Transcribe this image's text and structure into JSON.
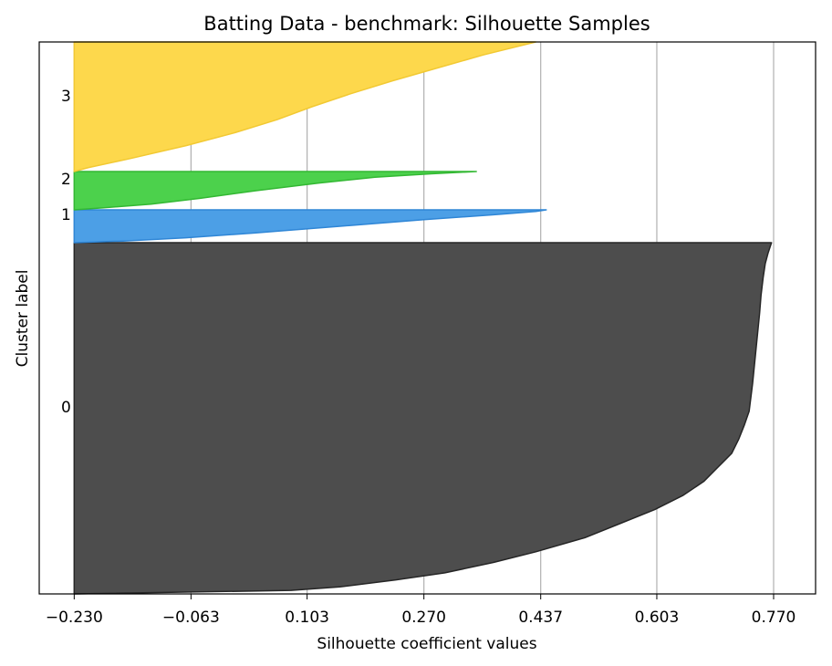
{
  "chart_data": {
    "type": "area",
    "title": "Batting Data - benchmark: Silhouette Samples",
    "xlabel": "Silhouette coefficient values",
    "ylabel": "Cluster label",
    "xlim": [
      -0.28,
      0.83
    ],
    "x_ticks": [
      "−0.230",
      "−0.063",
      "0.103",
      "0.270",
      "0.437",
      "0.603",
      "0.770"
    ],
    "x_tick_values": [
      -0.23,
      -0.063,
      0.103,
      0.27,
      0.437,
      0.603,
      0.77
    ],
    "grid": "vertical",
    "baseline": -0.23,
    "clusters": [
      {
        "label": "0",
        "color": "#4d4d4d",
        "edge": "#262626",
        "sample_count": 385,
        "max_value": 0.767,
        "min_value": -0.23,
        "profile": [
          [
            0,
            0.767
          ],
          [
            0.03,
            0.762
          ],
          [
            0.06,
            0.758
          ],
          [
            0.1,
            0.755
          ],
          [
            0.15,
            0.752
          ],
          [
            0.2,
            0.75
          ],
          [
            0.3,
            0.745
          ],
          [
            0.4,
            0.74
          ],
          [
            0.48,
            0.735
          ],
          [
            0.52,
            0.728
          ],
          [
            0.56,
            0.72
          ],
          [
            0.6,
            0.71
          ],
          [
            0.64,
            0.69
          ],
          [
            0.68,
            0.67
          ],
          [
            0.72,
            0.64
          ],
          [
            0.76,
            0.6
          ],
          [
            0.8,
            0.55
          ],
          [
            0.84,
            0.5
          ],
          [
            0.88,
            0.43
          ],
          [
            0.91,
            0.37
          ],
          [
            0.94,
            0.3
          ],
          [
            0.96,
            0.23
          ],
          [
            0.98,
            0.15
          ],
          [
            0.99,
            0.08
          ],
          [
            1.0,
            -0.23
          ]
        ]
      },
      {
        "label": "1",
        "color": "#4c9fe6",
        "edge": "#2f86d6",
        "sample_count": 22,
        "max_value": 0.445,
        "min_value": -0.23,
        "profile": [
          [
            0,
            0.445
          ],
          [
            0.05,
            0.43
          ],
          [
            0.15,
            0.37
          ],
          [
            0.3,
            0.27
          ],
          [
            0.5,
            0.15
          ],
          [
            0.7,
            0.03
          ],
          [
            0.85,
            -0.07
          ],
          [
            0.95,
            -0.16
          ],
          [
            1.0,
            -0.23
          ]
        ]
      },
      {
        "label": "2",
        "color": "#4cd14c",
        "edge": "#33b833",
        "sample_count": 25,
        "max_value": 0.345,
        "min_value": -0.23,
        "profile": [
          [
            0,
            0.345
          ],
          [
            0.06,
            0.28
          ],
          [
            0.15,
            0.2
          ],
          [
            0.3,
            0.12
          ],
          [
            0.5,
            0.03
          ],
          [
            0.7,
            -0.05
          ],
          [
            0.85,
            -0.12
          ],
          [
            0.95,
            -0.19
          ],
          [
            1.0,
            -0.23
          ]
        ]
      },
      {
        "label": "3",
        "color": "#fdd84c",
        "edge": "#f2c933",
        "sample_count": 87,
        "max_value": 0.43,
        "min_value": -0.23,
        "profile": [
          [
            0,
            0.43
          ],
          [
            0.04,
            0.4
          ],
          [
            0.1,
            0.355
          ],
          [
            0.2,
            0.29
          ],
          [
            0.3,
            0.225
          ],
          [
            0.4,
            0.165
          ],
          [
            0.5,
            0.11
          ],
          [
            0.6,
            0.06
          ],
          [
            0.7,
            0.0
          ],
          [
            0.8,
            -0.07
          ],
          [
            0.9,
            -0.15
          ],
          [
            0.97,
            -0.21
          ],
          [
            1.0,
            -0.23
          ]
        ]
      }
    ]
  }
}
